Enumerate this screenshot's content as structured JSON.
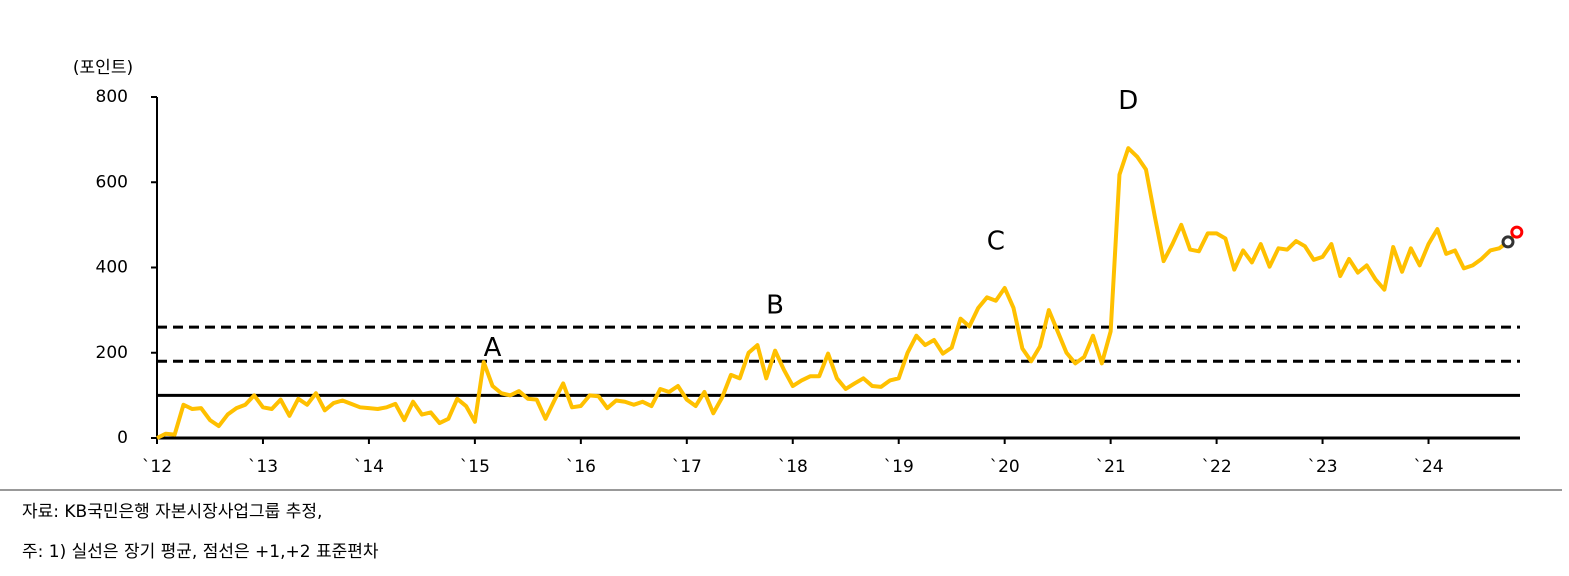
{
  "chart_data": {
    "type": "line",
    "unit_label": "(포인트)",
    "categories": [
      "`12",
      null,
      null,
      null,
      null,
      null,
      null,
      null,
      null,
      null,
      null,
      null,
      "`13",
      null,
      null,
      null,
      null,
      null,
      null,
      null,
      null,
      null,
      null,
      null,
      "`14",
      null,
      null,
      null,
      null,
      null,
      null,
      null,
      null,
      null,
      null,
      null,
      "`15",
      null,
      null,
      null,
      null,
      null,
      null,
      null,
      null,
      null,
      null,
      null,
      "`16",
      null,
      null,
      null,
      null,
      null,
      null,
      null,
      null,
      null,
      null,
      null,
      "`17",
      null,
      null,
      null,
      null,
      null,
      null,
      null,
      null,
      null,
      null,
      null,
      "`18",
      null,
      null,
      null,
      null,
      null,
      null,
      null,
      null,
      null,
      null,
      null,
      "`19",
      null,
      null,
      null,
      null,
      null,
      null,
      null,
      null,
      null,
      null,
      null,
      "`20",
      null,
      null,
      null,
      null,
      null,
      null,
      null,
      null,
      null,
      null,
      null,
      "`21",
      null,
      null,
      null,
      null,
      null,
      null,
      null,
      null,
      null,
      null,
      null,
      "`22",
      null,
      null,
      null,
      null,
      null,
      null,
      null,
      null,
      null,
      null,
      null,
      "`23",
      null,
      null,
      null,
      null,
      null,
      null,
      null,
      null,
      null,
      null,
      null,
      "`24",
      null,
      null,
      null,
      null,
      null,
      null,
      null,
      null,
      null,
      null
    ],
    "values": [
      0,
      10,
      8,
      78,
      68,
      70,
      42,
      28,
      55,
      70,
      78,
      100,
      72,
      68,
      90,
      52,
      92,
      78,
      105,
      65,
      82,
      88,
      80,
      72,
      70,
      68,
      72,
      80,
      42,
      85,
      55,
      60,
      35,
      45,
      92,
      75,
      38,
      178,
      122,
      105,
      100,
      110,
      92,
      90,
      45,
      88,
      128,
      72,
      75,
      100,
      98,
      70,
      88,
      85,
      78,
      85,
      75,
      115,
      108,
      122,
      90,
      75,
      108,
      58,
      95,
      148,
      140,
      200,
      218,
      140,
      205,
      160,
      122,
      135,
      145,
      145,
      198,
      140,
      115,
      128,
      140,
      122,
      120,
      135,
      140,
      200,
      240,
      218,
      230,
      198,
      212,
      280,
      262,
      305,
      330,
      322,
      352,
      305,
      210,
      180,
      215,
      300,
      250,
      200,
      175,
      190,
      240,
      175,
      250,
      618,
      680,
      660,
      630,
      520,
      415,
      455,
      500,
      442,
      438,
      480,
      480,
      468,
      395,
      440,
      412,
      455,
      402,
      445,
      442,
      462,
      450,
      418,
      425,
      455,
      380,
      420,
      388,
      405,
      372,
      348,
      448,
      390,
      445,
      405,
      455,
      490,
      432,
      440,
      398,
      405,
      420,
      440,
      445,
      460,
      483
    ],
    "color": "#ffc000",
    "end_marker_colors": [
      "#333333",
      "#ff0000"
    ],
    "ylim": [
      0,
      800
    ],
    "yticks": [
      0,
      200,
      400,
      600,
      800
    ],
    "hlines": [
      {
        "value": 100,
        "style": "solid"
      },
      {
        "value": 180,
        "style": "dashed"
      },
      {
        "value": 260,
        "style": "dashed"
      }
    ],
    "annotations": [
      {
        "text": "A",
        "index": 38,
        "value": 210
      },
      {
        "text": "B",
        "index": 70,
        "value": 310
      },
      {
        "text": "C",
        "index": 95,
        "value": 460
      },
      {
        "text": "D",
        "index": 110,
        "value": 790
      }
    ]
  },
  "footer": {
    "source": "자료: KB국민은행 자본시장사업그룹 추정,",
    "note": "주: 1) 실선은 장기 평균, 점선은 +1,+2 표준편차"
  }
}
